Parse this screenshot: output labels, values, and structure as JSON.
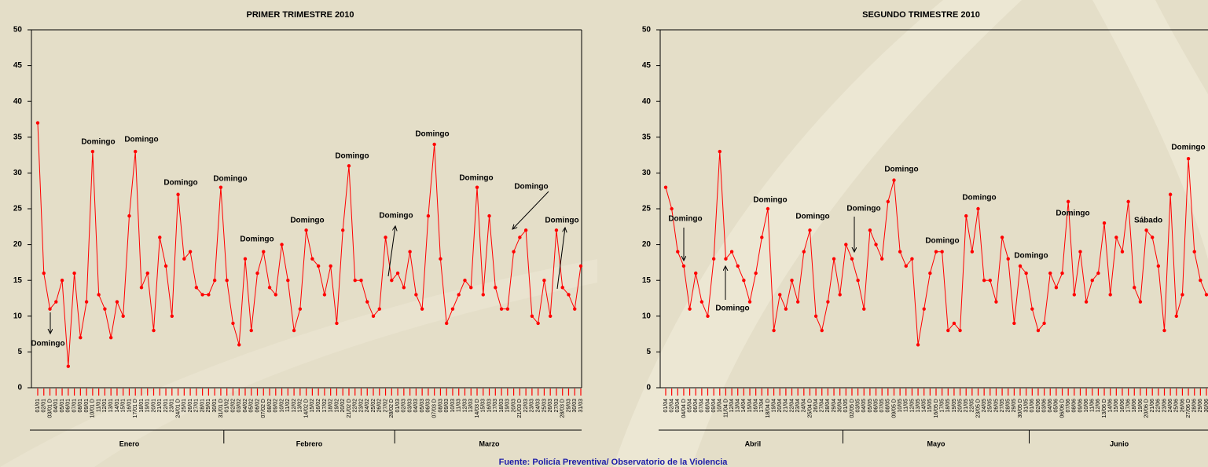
{
  "chart_data": [
    {
      "type": "line",
      "title": "PRIMER TRIMESTRE 2010",
      "categories": [
        "01/01",
        "02/01",
        "03/01 D",
        "04/01",
        "05/01",
        "06/01",
        "07/01",
        "08/01",
        "09/01",
        "10/01 D",
        "11/01",
        "12/01",
        "13/01",
        "14/01",
        "15/01",
        "16/01",
        "17/01 D",
        "18/01",
        "19/01",
        "20/01",
        "21/01",
        "22/01",
        "23/01",
        "24/01 D",
        "25/01",
        "26/01",
        "27/01",
        "28/01",
        "29/01",
        "30/01",
        "31/01 D",
        "01/02",
        "02/02",
        "03/02",
        "04/02",
        "05/02",
        "06/02",
        "07/02 D",
        "08/02",
        "09/02",
        "10/02",
        "11/02",
        "12/02",
        "13/02",
        "14/02 D",
        "15/02",
        "16/02",
        "17/02",
        "18/02",
        "19/02",
        "20/02",
        "21/02 D",
        "22/02",
        "23/02",
        "24/02",
        "25/02",
        "26/02",
        "27/02",
        "28/02 D",
        "01/03",
        "02/03",
        "03/03",
        "04/03",
        "05/03",
        "06/03",
        "07/03 D",
        "08/03",
        "09/03",
        "10/03",
        "11/03",
        "12/03",
        "13/03",
        "14/03 D",
        "15/03",
        "16/03",
        "17/03",
        "18/03",
        "19/03",
        "20/03",
        "21/03 D",
        "22/03",
        "23/03",
        "24/03",
        "25/03",
        "26/03",
        "27/03",
        "28/03 D",
        "29/03",
        "30/03",
        "31/03"
      ],
      "series": [
        {
          "color": "#ff0000",
          "values": [
            37,
            16,
            11,
            12,
            15,
            3,
            16,
            7,
            12,
            33,
            13,
            11,
            7,
            12,
            10,
            24,
            33,
            14,
            16,
            8,
            21,
            17,
            10,
            27,
            18,
            19,
            14,
            13,
            13,
            15,
            28,
            15,
            9,
            6,
            18,
            8,
            16,
            19,
            14,
            13,
            20,
            15,
            8,
            11,
            22,
            18,
            17,
            13,
            17,
            9,
            22,
            31,
            15,
            15,
            12,
            10,
            11,
            21,
            15,
            16,
            14,
            19,
            13,
            11,
            24,
            34,
            18,
            9,
            11,
            13,
            15,
            14,
            28,
            13,
            24,
            14,
            11,
            11,
            19,
            21,
            22,
            10,
            9,
            15,
            10,
            22,
            14,
            13,
            11,
            17
          ]
        }
      ],
      "ylim": [
        0,
        50
      ],
      "yticks": [
        0,
        5,
        10,
        15,
        20,
        25,
        30,
        35,
        40,
        45,
        50
      ],
      "groups": [
        "Enero",
        "Febrero",
        "Marzo"
      ],
      "annotations": [
        "Domingo",
        "Domingo",
        "Domingo",
        "Domingo",
        "Domingo",
        "Domingo",
        "Domingo",
        "Domingo",
        "Domingo",
        "Domingo",
        "Domingo",
        "Domingo",
        "Domingo"
      ]
    },
    {
      "type": "line",
      "title": "SEGUNDO TRIMESTRE 2010",
      "categories": [
        "01/04",
        "02/04",
        "03/04",
        "04/04 D",
        "05/04",
        "06/04",
        "07/04",
        "08/04",
        "09/04",
        "10/04",
        "11/04 D",
        "12/04",
        "13/04",
        "14/04",
        "15/04",
        "16/04",
        "17/04",
        "18/04 D",
        "19/04",
        "20/04",
        "21/04",
        "22/04",
        "23/04",
        "24/04",
        "25/04 D",
        "26/04",
        "27/04",
        "28/04",
        "29/04",
        "30/04",
        "01/05",
        "02/05 D",
        "03/05",
        "04/05",
        "05/05",
        "06/05",
        "07/05",
        "08/05",
        "09/05 D",
        "10/05",
        "11/05",
        "12/05",
        "13/05",
        "14/05",
        "15/05",
        "16/05 D",
        "17/05",
        "18/05",
        "19/05",
        "20/05",
        "21/05",
        "22/05",
        "23/05 D",
        "24/05",
        "25/05",
        "26/05",
        "27/05",
        "28/05",
        "29/05",
        "30/05 D",
        "31/05",
        "01/06",
        "02/06",
        "03/06",
        "04/06",
        "05/06",
        "06/06 D",
        "07/06",
        "08/06",
        "09/06",
        "10/06",
        "11/06",
        "12/06",
        "13/06 D",
        "14/06",
        "15/06",
        "16/06",
        "17/06",
        "18/06",
        "19/06",
        "20/06 D",
        "21/06",
        "22/06",
        "23/06",
        "24/06",
        "25/06",
        "26/06",
        "27/06 D",
        "28/06",
        "29/06",
        "30/06"
      ],
      "series": [
        {
          "color": "#ff0000",
          "values": [
            28,
            25,
            19,
            17,
            11,
            16,
            12,
            10,
            18,
            33,
            18,
            19,
            17,
            15,
            12,
            16,
            21,
            25,
            8,
            13,
            11,
            15,
            12,
            19,
            22,
            10,
            8,
            12,
            18,
            13,
            20,
            18,
            15,
            11,
            22,
            20,
            18,
            26,
            29,
            19,
            17,
            18,
            6,
            11,
            16,
            19,
            19,
            8,
            9,
            8,
            24,
            19,
            25,
            15,
            15,
            12,
            21,
            18,
            9,
            17,
            16,
            11,
            8,
            9,
            16,
            14,
            16,
            26,
            13,
            19,
            12,
            15,
            16,
            23,
            13,
            21,
            19,
            26,
            14,
            12,
            22,
            21,
            17,
            8,
            27,
            10,
            13,
            32,
            19,
            15,
            13
          ]
        }
      ],
      "ylim": [
        0,
        50
      ],
      "yticks": [
        0,
        5,
        10,
        15,
        20,
        25,
        30,
        35,
        40,
        45,
        50
      ],
      "groups": [
        "Abril",
        "Mayo",
        "Junio"
      ],
      "annotations": [
        "Domingo",
        "Domingo",
        "Domingo",
        "Domingo",
        "Domingo",
        "Domingo",
        "Domingo",
        "Domingo",
        "Domingo",
        "Domingo",
        "Sábado",
        "Domingo",
        "Domingo"
      ]
    }
  ],
  "source": "Fuente: Policía Preventiva/ Observatorio de la Violencia"
}
